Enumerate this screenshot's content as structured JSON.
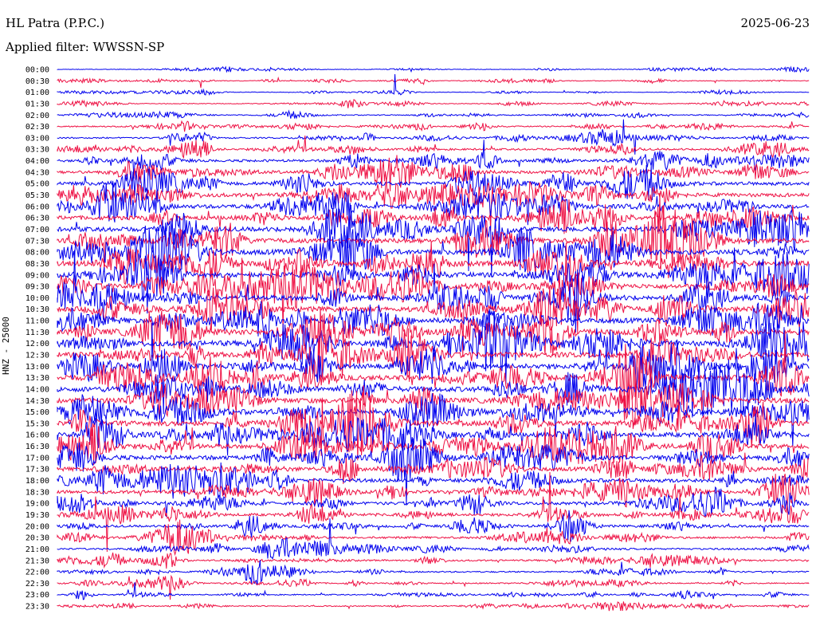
{
  "header": {
    "station": "HL Patra (P.P.C.)",
    "filter": "Applied filter: WWSSN-SP",
    "date": "2025-06-23"
  },
  "channel_label": "HNZ - 25000",
  "colors": {
    "trace_a": "#0000ee",
    "trace_b": "#ee1144",
    "background": "#ffffff"
  },
  "chart_data": {
    "type": "line",
    "title": "HL Patra (P.P.C.)",
    "subtitle": "Applied filter: WWSSN-SP",
    "ylabel": "HNZ - 25000",
    "y_tick_labels": [
      "00:00",
      "00:30",
      "01:00",
      "01:30",
      "02:00",
      "02:30",
      "03:00",
      "03:30",
      "04:00",
      "04:30",
      "05:00",
      "05:30",
      "06:00",
      "06:30",
      "07:00",
      "07:30",
      "08:00",
      "08:30",
      "09:00",
      "09:30",
      "10:00",
      "10:30",
      "11:00",
      "11:30",
      "12:00",
      "12:30",
      "13:00",
      "13:30",
      "14:00",
      "14:30",
      "15:00",
      "15:30",
      "16:00",
      "16:30",
      "17:00",
      "17:30",
      "18:00",
      "18:30",
      "19:00",
      "19:30",
      "20:00",
      "20:30",
      "21:00",
      "21:30",
      "22:00",
      "22:30",
      "23:00",
      "23:30"
    ],
    "trace_colors_alternate": [
      "#0000ee",
      "#ee1144"
    ],
    "relative_noise_amplitude_per_row": [
      0.1,
      0.12,
      0.1,
      0.14,
      0.18,
      0.22,
      0.25,
      0.35,
      0.45,
      0.55,
      0.65,
      0.7,
      0.75,
      0.8,
      0.85,
      0.9,
      0.95,
      0.95,
      0.9,
      0.88,
      0.9,
      0.92,
      0.95,
      1.0,
      1.0,
      0.98,
      0.95,
      0.95,
      0.95,
      0.93,
      0.92,
      0.9,
      0.85,
      0.82,
      0.8,
      0.72,
      0.68,
      0.6,
      0.55,
      0.5,
      0.42,
      0.38,
      0.32,
      0.3,
      0.25,
      0.22,
      0.2,
      0.18
    ],
    "grid": false
  }
}
